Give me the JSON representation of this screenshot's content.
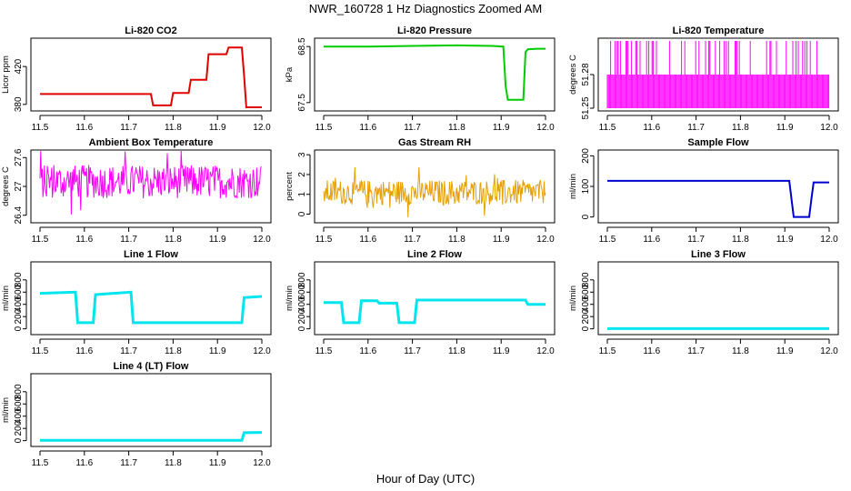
{
  "figure": {
    "title": "NWR_160728  1 Hz Diagnostics Zoomed AM",
    "xlabel": "Hour of Day (UTC)"
  },
  "chart_data": [
    {
      "type": "line",
      "title": "Li-820 CO2",
      "ylabel": "Licor ppm",
      "xlim": [
        11.5,
        12.0
      ],
      "ylim": [
        376,
        447
      ],
      "xticks": [
        "11.5",
        "11.6",
        "11.7",
        "11.8",
        "11.9",
        "12.0"
      ],
      "yticks": [
        380,
        420
      ],
      "color": "#e00000",
      "series": [
        {
          "x": [
            11.5,
            11.6,
            11.75,
            11.755,
            11.795,
            11.8,
            11.835,
            11.84,
            11.875,
            11.88,
            11.92,
            11.925,
            11.955,
            11.96,
            11.965,
            12.0
          ],
          "y": [
            391,
            391,
            391,
            379,
            379,
            392,
            392,
            406,
            406,
            433,
            433,
            440,
            440,
            410,
            377,
            377
          ]
        }
      ]
    },
    {
      "type": "line",
      "title": "Li-820 Pressure",
      "ylabel": "kPa",
      "xlim": [
        11.5,
        12.0
      ],
      "ylim": [
        67.4,
        68.6
      ],
      "xticks": [
        "11.5",
        "11.6",
        "11.7",
        "11.8",
        "11.9",
        "12.0"
      ],
      "yticks": [
        67.5,
        68.5
      ],
      "color": "#00cc00",
      "series": [
        {
          "x": [
            11.5,
            11.6,
            11.7,
            11.8,
            11.88,
            11.905,
            11.91,
            11.915,
            11.95,
            11.955,
            11.96,
            11.98,
            12.0
          ],
          "y": [
            68.5,
            68.5,
            68.51,
            68.52,
            68.51,
            68.5,
            67.8,
            67.55,
            67.55,
            68.4,
            68.45,
            68.46,
            68.46
          ]
        }
      ]
    },
    {
      "type": "line",
      "title": "Li-820 Temperature",
      "ylabel": "degrees C",
      "xlim": [
        11.5,
        12.0
      ],
      "ylim": [
        51.25,
        51.31
      ],
      "xticks": [
        "11.5",
        "11.6",
        "11.7",
        "11.8",
        "11.9",
        "12.0"
      ],
      "yticks": [
        51.25,
        51.28
      ],
      "color": "#ff00ff",
      "series": [
        {
          "levels": [
            51.25,
            51.28,
            51.31
          ]
        }
      ]
    },
    {
      "type": "line",
      "title": "Ambient Box Temperature",
      "ylabel": "degrees C",
      "xlim": [
        11.5,
        12.0
      ],
      "ylim": [
        26.3,
        27.7
      ],
      "xticks": [
        "11.5",
        "11.6",
        "11.7",
        "11.8",
        "11.9",
        "12.0"
      ],
      "yticks": [
        26.4,
        27.0,
        27.6
      ],
      "color": "#ff00ff",
      "series": [
        {
          "center": 27.1,
          "spread": 0.5
        }
      ]
    },
    {
      "type": "line",
      "title": "Gas Stream RH",
      "ylabel": "percent",
      "xlim": [
        11.5,
        12.0
      ],
      "ylim": [
        -0.3,
        3.1
      ],
      "xticks": [
        "11.5",
        "11.6",
        "11.7",
        "11.8",
        "11.9",
        "12.0"
      ],
      "yticks": [
        0,
        1,
        2,
        3
      ],
      "color": "#e6a000",
      "series": [
        {
          "center": 1.1,
          "spread": 0.9
        }
      ]
    },
    {
      "type": "line",
      "title": "Sample Flow",
      "ylabel": "ml/min",
      "xlim": [
        11.5,
        12.0
      ],
      "ylim": [
        -10,
        210
      ],
      "xticks": [
        "11.5",
        "11.6",
        "11.7",
        "11.8",
        "11.9",
        "12.0"
      ],
      "yticks": [
        0,
        100,
        200
      ],
      "color": "#0000cc",
      "series": [
        {
          "x": [
            11.5,
            11.6,
            11.7,
            11.8,
            11.91,
            11.915,
            11.92,
            11.955,
            11.96,
            11.965,
            12.0
          ],
          "y": [
            118,
            118,
            118,
            118,
            118,
            60,
            0,
            0,
            60,
            113,
            113
          ]
        }
      ]
    },
    {
      "type": "line",
      "title": "Line 1 Flow",
      "ylabel": "ml/min",
      "xlim": [
        11.5,
        12.0
      ],
      "ylim": [
        -50,
        1050
      ],
      "xticks": [
        "11.5",
        "11.6",
        "11.7",
        "11.8",
        "11.9",
        "12.0"
      ],
      "yticks": [
        0,
        200,
        400,
        600,
        800
      ],
      "color": "#00e5ee",
      "series": [
        {
          "x": [
            11.5,
            11.58,
            11.585,
            11.62,
            11.625,
            11.705,
            11.71,
            11.955,
            11.96,
            12.0
          ],
          "y": [
            580,
            600,
            100,
            100,
            560,
            600,
            100,
            100,
            510,
            530
          ]
        }
      ]
    },
    {
      "type": "line",
      "title": "Line 2 Flow",
      "ylabel": "ml/min",
      "xlim": [
        11.5,
        12.0
      ],
      "ylim": [
        -50,
        1050
      ],
      "xticks": [
        "11.5",
        "11.6",
        "11.7",
        "11.8",
        "11.9",
        "12.0"
      ],
      "yticks": [
        0,
        200,
        400,
        600,
        800
      ],
      "color": "#00e5ee",
      "series": [
        {
          "x": [
            11.5,
            11.54,
            11.545,
            11.58,
            11.585,
            11.62,
            11.625,
            11.665,
            11.67,
            11.705,
            11.71,
            11.8,
            11.9,
            11.955,
            11.96,
            12.0
          ],
          "y": [
            430,
            430,
            100,
            100,
            460,
            460,
            420,
            420,
            100,
            100,
            470,
            470,
            470,
            470,
            400,
            400
          ]
        }
      ]
    },
    {
      "type": "line",
      "title": "Line 3 Flow",
      "ylabel": "ml/min",
      "xlim": [
        11.5,
        12.0
      ],
      "ylim": [
        -50,
        1050
      ],
      "xticks": [
        "11.5",
        "11.6",
        "11.7",
        "11.8",
        "11.9",
        "12.0"
      ],
      "yticks": [
        0,
        200,
        400,
        600,
        800
      ],
      "color": "#00e5ee",
      "series": [
        {
          "x": [
            11.5,
            12.0
          ],
          "y": [
            3,
            3
          ]
        }
      ]
    },
    {
      "type": "line",
      "title": "Line 4 (LT) Flow",
      "ylabel": "ml/min",
      "xlim": [
        11.5,
        12.0
      ],
      "ylim": [
        -50,
        1050
      ],
      "xticks": [
        "11.5",
        "11.6",
        "11.7",
        "11.8",
        "11.9",
        "12.0"
      ],
      "yticks": [
        0,
        200,
        400,
        600,
        800
      ],
      "color": "#00e5ee",
      "series": [
        {
          "x": [
            11.5,
            11.955,
            11.96,
            12.0
          ],
          "y": [
            5,
            5,
            130,
            135
          ]
        }
      ]
    }
  ]
}
